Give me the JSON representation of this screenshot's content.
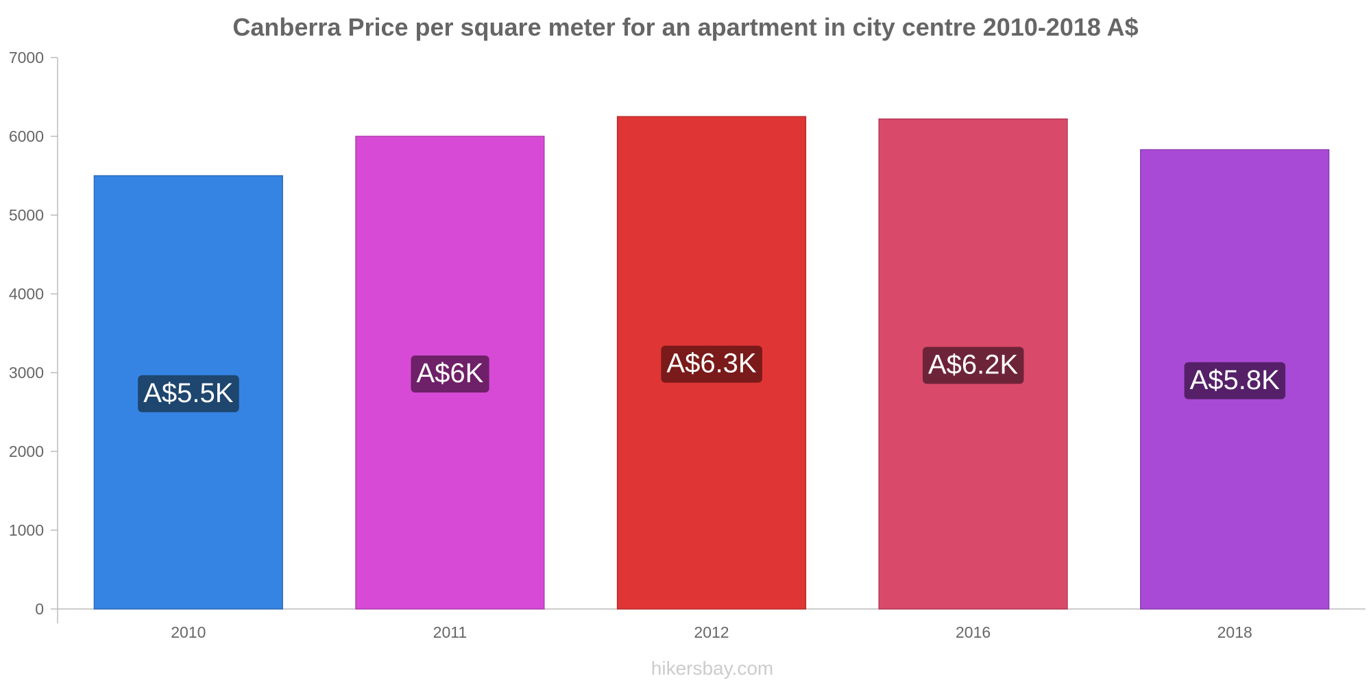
{
  "chart_data": {
    "type": "bar",
    "title": "Canberra Price per square meter for an apartment in city centre 2010-2018 A$",
    "xlabel": "",
    "ylabel": "",
    "categories": [
      "2010",
      "2011",
      "2012",
      "2016",
      "2018"
    ],
    "values": [
      5500,
      6000,
      6250,
      6220,
      5830
    ],
    "data_labels": [
      "A$5.5K",
      "A$6K",
      "A$6.3K",
      "A$6.2K",
      "A$5.8K"
    ],
    "ylim": [
      0,
      7000
    ],
    "y_ticks": [
      0,
      1000,
      2000,
      3000,
      4000,
      5000,
      6000,
      7000
    ],
    "grid": false,
    "bar_colors": [
      "#3584e4",
      "#d64ad6",
      "#e03535",
      "#d94a6a",
      "#a94ad6"
    ],
    "bar_border_colors": [
      "#2a6ab8",
      "#b03cb0",
      "#b82a2a",
      "#b53a56",
      "#8a3cb0"
    ],
    "label_bg_colors": [
      "#1e466e",
      "#6e2068",
      "#7a1a1a",
      "#6e2438",
      "#552068"
    ]
  },
  "watermark": "hikersbay.com"
}
